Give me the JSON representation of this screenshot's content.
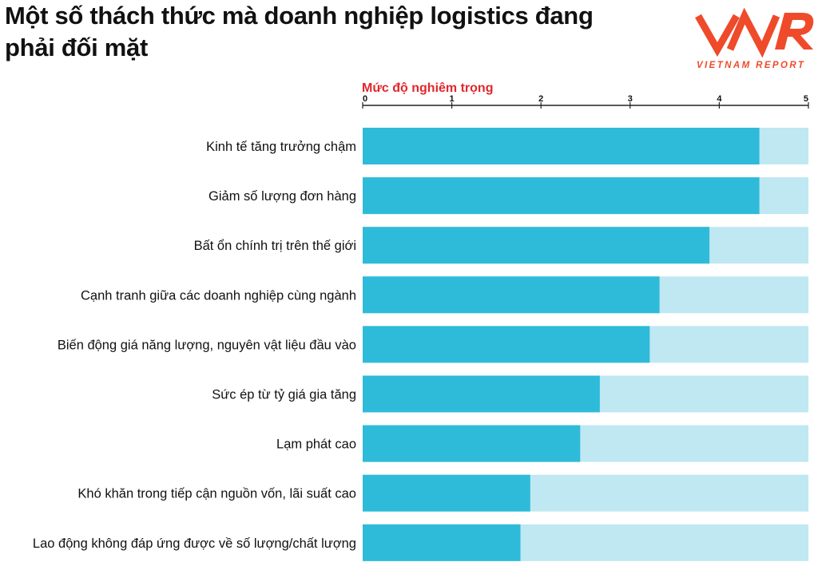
{
  "title": "Một số thách thức mà doanh nghiệp logistics đang phải đối mặt",
  "logo": {
    "mark": "VNR",
    "text": "VIETNAM REPORT"
  },
  "colors": {
    "bar": "#2ebbd9",
    "track": "#bfe8f2",
    "accent": "#e0262b",
    "logo": "#ef4a2a"
  },
  "chart_data": {
    "type": "bar",
    "orientation": "horizontal",
    "axis_title": "Mức độ nghiêm trọng",
    "xlim": [
      0,
      5
    ],
    "ticks": [
      "0",
      "1",
      "2",
      "3",
      "4",
      "5"
    ],
    "grid": false,
    "categories": [
      "Kinh tế tăng trưởng chậm",
      "Giảm số lượng đơn hàng",
      "Bất ổn chính trị trên thế giới",
      "Cạnh tranh giữa các doanh nghiệp cùng ngành",
      "Biến động giá năng lượng, nguyên vật liệu đầu vào",
      "Sức ép từ tỷ giá gia tăng",
      "Lạm phát cao",
      "Khó khăn trong tiếp cận nguồn vốn, lãi suất cao",
      "Lao động không đáp ứng được về số lượng/chất lượng"
    ],
    "values": [
      4.45,
      4.45,
      3.89,
      3.33,
      3.22,
      2.66,
      2.44,
      1.88,
      1.77
    ]
  }
}
